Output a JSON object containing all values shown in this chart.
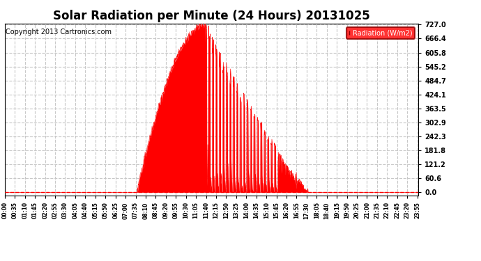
{
  "title": "Solar Radiation per Minute (24 Hours) 20131025",
  "copyright_text": "Copyright 2013 Cartronics.com",
  "legend_label": "Radiation (W/m2)",
  "yticks": [
    0.0,
    60.6,
    121.2,
    181.8,
    242.3,
    302.9,
    363.5,
    424.1,
    484.7,
    545.2,
    605.8,
    666.4,
    727.0
  ],
  "ymax": 727.0,
  "ymin": 0.0,
  "fill_color": "#ff0000",
  "line_color": "#ff0000",
  "bg_color": "#ffffff",
  "grid_color": "#c8c8c8",
  "zero_line_color": "#ff0000",
  "title_fontsize": 12,
  "copyright_fontsize": 7,
  "xtick_interval_minutes": 35,
  "total_minutes": 1440,
  "sunrise_minute": 460,
  "sunset_minute": 1055,
  "peak_minute": 700
}
